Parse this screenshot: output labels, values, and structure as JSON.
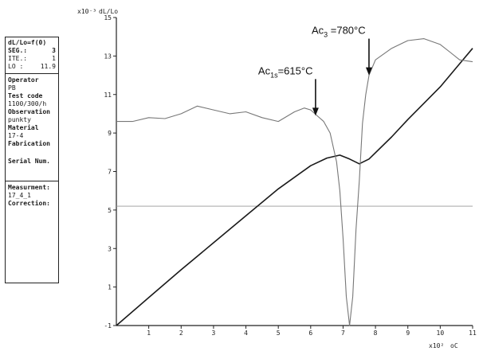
{
  "info_panel": {
    "header": "dL/Lo=f(0)",
    "seg_label": "SEG.:",
    "seg_value": "3",
    "ite_label": "ITE.:",
    "ite_value": "1",
    "lo_label": "LO :",
    "lo_value": "11.9",
    "operator_label": "Operator",
    "operator_value": "PB",
    "test_code_label": "Test code",
    "test_code_value": "1100/300/h",
    "observation_label": "Observation",
    "observation_value": "punkty",
    "material_label": "Material",
    "material_value": "17-4",
    "fabrication_label": "Fabrication",
    "serial_label": "Serial Num.",
    "measurement_label": "Measurment:",
    "measurement_value": "17_4_1",
    "correction_label": "Correction:"
  },
  "chart_data": {
    "type": "line",
    "y_exponent_label": "x10⁻³",
    "y_unit_label": "dL/Lo",
    "x_exponent_label": "x10²",
    "x_unit_label": "oC",
    "xlim": [
      0,
      11
    ],
    "ylim": [
      -1,
      15
    ],
    "x_ticks": [
      "1",
      "2",
      "3",
      "4",
      "5",
      "6",
      "7",
      "8",
      "9",
      "10",
      "11"
    ],
    "y_ticks": [
      "-1",
      "1",
      "3",
      "5",
      "7",
      "9",
      "11",
      "13",
      "15"
    ],
    "reference_line_y": 5.2,
    "annotations": [
      {
        "name": "ac1s",
        "main": "Ac",
        "sub": "1s",
        "rest": "=615°C",
        "x": 6.15,
        "y": 9.9
      },
      {
        "name": "ac3",
        "main": "Ac",
        "sub": "3",
        "rest": " =780°C",
        "x": 7.8,
        "y": 12.0
      }
    ],
    "series": [
      {
        "color": "#1a1a1a",
        "points": [
          [
            0,
            -1
          ],
          [
            1,
            0.45
          ],
          [
            2,
            1.9
          ],
          [
            3,
            3.3
          ],
          [
            4,
            4.7
          ],
          [
            5,
            6.1
          ],
          [
            6,
            7.3
          ],
          [
            6.5,
            7.7
          ],
          [
            6.9,
            7.85
          ],
          [
            7.2,
            7.65
          ],
          [
            7.5,
            7.4
          ],
          [
            7.8,
            7.65
          ],
          [
            8.5,
            8.8
          ],
          [
            9,
            9.7
          ],
          [
            10,
            11.4
          ],
          [
            10.5,
            12.4
          ],
          [
            11,
            13.4
          ]
        ]
      },
      {
        "color": "#777777",
        "points": [
          [
            0,
            9.6
          ],
          [
            0.5,
            9.6
          ],
          [
            1,
            9.8
          ],
          [
            1.5,
            9.75
          ],
          [
            2,
            10.0
          ],
          [
            2.5,
            10.4
          ],
          [
            3,
            10.2
          ],
          [
            3.5,
            10.0
          ],
          [
            4,
            10.1
          ],
          [
            4.5,
            9.8
          ],
          [
            5,
            9.6
          ],
          [
            5.5,
            10.1
          ],
          [
            5.8,
            10.3
          ],
          [
            6,
            10.2
          ],
          [
            6.2,
            9.9
          ],
          [
            6.4,
            9.6
          ],
          [
            6.6,
            9.0
          ],
          [
            6.8,
            7.5
          ],
          [
            6.9,
            6.0
          ],
          [
            7.0,
            3.5
          ],
          [
            7.1,
            0.5
          ],
          [
            7.2,
            -1.0
          ],
          [
            7.3,
            0.5
          ],
          [
            7.4,
            4.0
          ],
          [
            7.5,
            6.5
          ],
          [
            7.6,
            9.5
          ],
          [
            7.7,
            11.0
          ],
          [
            7.8,
            12.0
          ],
          [
            8,
            12.8
          ],
          [
            8.5,
            13.4
          ],
          [
            9,
            13.8
          ],
          [
            9.5,
            13.9
          ],
          [
            10,
            13.6
          ],
          [
            10.3,
            13.2
          ],
          [
            10.6,
            12.8
          ],
          [
            11,
            12.7
          ]
        ]
      }
    ]
  }
}
